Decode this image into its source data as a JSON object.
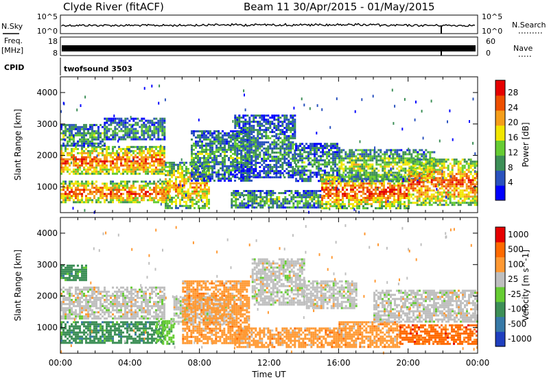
{
  "figure": {
    "title_left": "Clyde River (fitACF)",
    "title_right": "Beam 11  30/Apr/2015 - 01/May/2015",
    "time_axis_label": "Time UT",
    "time_ticks": [
      "00:00",
      "04:00",
      "08:00",
      "12:00",
      "16:00",
      "20:00",
      "00:00"
    ]
  },
  "top_panels": {
    "nsky": {
      "left_label": "N.Sky",
      "right_label": "N.Search",
      "left_ticks": [
        "10^5",
        "10^0"
      ],
      "right_ticks": [
        "10^5",
        "10^0"
      ]
    },
    "freq": {
      "left_label_1": "Freq.",
      "left_label_2": "[MHz]",
      "right_label": "Nave",
      "left_ticks": [
        "18",
        "8"
      ],
      "right_ticks": [
        "60",
        "0"
      ]
    },
    "cpid": {
      "label": "CPID",
      "program": "twofsound 3503"
    }
  },
  "chart_data": [
    {
      "type": "heatmap",
      "title": "",
      "xlabel": "",
      "ylabel": "Slant Range [km]",
      "xlim": [
        0,
        24
      ],
      "ylim": [
        180,
        4500
      ],
      "y_ticks": [
        1000,
        2000,
        3000,
        4000
      ],
      "x_tick_labels": [
        "00:00",
        "04:00",
        "08:00",
        "12:00",
        "16:00",
        "20:00",
        "00:00"
      ],
      "colorbar": {
        "label": "Power [dB]",
        "ticks": [
          4,
          8,
          12,
          16,
          20,
          24,
          28
        ],
        "range": [
          0,
          30
        ],
        "colors": [
          "#0000ff",
          "#2a52be",
          "#3d8f57",
          "#66cc33",
          "#f2e600",
          "#f59e1a",
          "#ee4f00",
          "#e60000"
        ]
      },
      "bands": [
        {
          "t0": 0.0,
          "t1": 6.2,
          "r0": 500,
          "r1": 1200,
          "level": 0.72
        },
        {
          "t0": 0.0,
          "t1": 6.0,
          "r0": 1400,
          "r1": 2300,
          "level": 0.72
        },
        {
          "t0": 0.0,
          "t1": 2.5,
          "r0": 2300,
          "r1": 3000,
          "level": 0.35
        },
        {
          "t0": 2.5,
          "t1": 6.0,
          "r0": 2500,
          "r1": 3200,
          "level": 0.3
        },
        {
          "t0": 6.0,
          "t1": 8.5,
          "r0": 300,
          "r1": 1800,
          "level": 0.6
        },
        {
          "t0": 7.5,
          "t1": 11.0,
          "r0": 1200,
          "r1": 2800,
          "level": 0.32
        },
        {
          "t0": 10.0,
          "t1": 13.5,
          "r0": 1300,
          "r1": 3300,
          "level": 0.28
        },
        {
          "t0": 9.8,
          "t1": 15.0,
          "r0": 350,
          "r1": 900,
          "level": 0.35
        },
        {
          "t0": 13.5,
          "t1": 16.0,
          "r0": 1200,
          "r1": 2400,
          "level": 0.3
        },
        {
          "t0": 15.0,
          "t1": 20.0,
          "r0": 350,
          "r1": 1400,
          "level": 0.75
        },
        {
          "t0": 16.0,
          "t1": 21.5,
          "r0": 1200,
          "r1": 2200,
          "level": 0.45
        },
        {
          "t0": 20.0,
          "t1": 24.0,
          "r0": 400,
          "r1": 1900,
          "level": 0.7
        }
      ]
    },
    {
      "type": "heatmap",
      "title": "",
      "xlabel": "Time UT",
      "ylabel": "Slant Range [km]",
      "xlim": [
        0,
        24
      ],
      "ylim": [
        180,
        4500
      ],
      "y_ticks": [
        1000,
        2000,
        3000,
        4000
      ],
      "x_tick_labels": [
        "00:00",
        "04:00",
        "08:00",
        "12:00",
        "16:00",
        "20:00",
        "00:00"
      ],
      "colorbar": {
        "label": "Velocity [m s^-1]",
        "ticks": [
          1000,
          500,
          100,
          25,
          -25,
          -100,
          -500,
          -1000
        ],
        "colors": [
          "#1f3fbf",
          "#3779a7",
          "#3d8f57",
          "#66cc33",
          "#bfbfbf",
          "#ff9933",
          "#ff6a00",
          "#e60000"
        ]
      },
      "bands": [
        {
          "t0": 0.0,
          "t1": 6.0,
          "r0": 1300,
          "r1": 2300,
          "color_index": 4
        },
        {
          "t0": 0.0,
          "t1": 6.0,
          "r0": 500,
          "r1": 1200,
          "color_index": 2
        },
        {
          "t0": 0.0,
          "t1": 1.5,
          "r0": 2500,
          "r1": 3000,
          "color_index": 2
        },
        {
          "t0": 5.5,
          "t1": 6.5,
          "r0": 500,
          "r1": 1300,
          "color_index": 3
        },
        {
          "t0": 6.5,
          "t1": 10.0,
          "r0": 1100,
          "r1": 2000,
          "color_index": 4
        },
        {
          "t0": 7.0,
          "t1": 10.8,
          "r0": 500,
          "r1": 2500,
          "color_index": 5
        },
        {
          "t0": 11.0,
          "t1": 14.0,
          "r0": 1700,
          "r1": 3200,
          "color_index": 4
        },
        {
          "t0": 10.0,
          "t1": 16.0,
          "r0": 350,
          "r1": 1000,
          "color_index": 5
        },
        {
          "t0": 14.0,
          "t1": 17.0,
          "r0": 1600,
          "r1": 2500,
          "color_index": 4
        },
        {
          "t0": 16.0,
          "t1": 19.5,
          "r0": 350,
          "r1": 1200,
          "color_index": 5
        },
        {
          "t0": 18.0,
          "t1": 24.0,
          "r0": 1200,
          "r1": 2200,
          "color_index": 4
        },
        {
          "t0": 19.5,
          "t1": 24.0,
          "r0": 500,
          "r1": 1100,
          "color_index": 6
        }
      ]
    }
  ]
}
